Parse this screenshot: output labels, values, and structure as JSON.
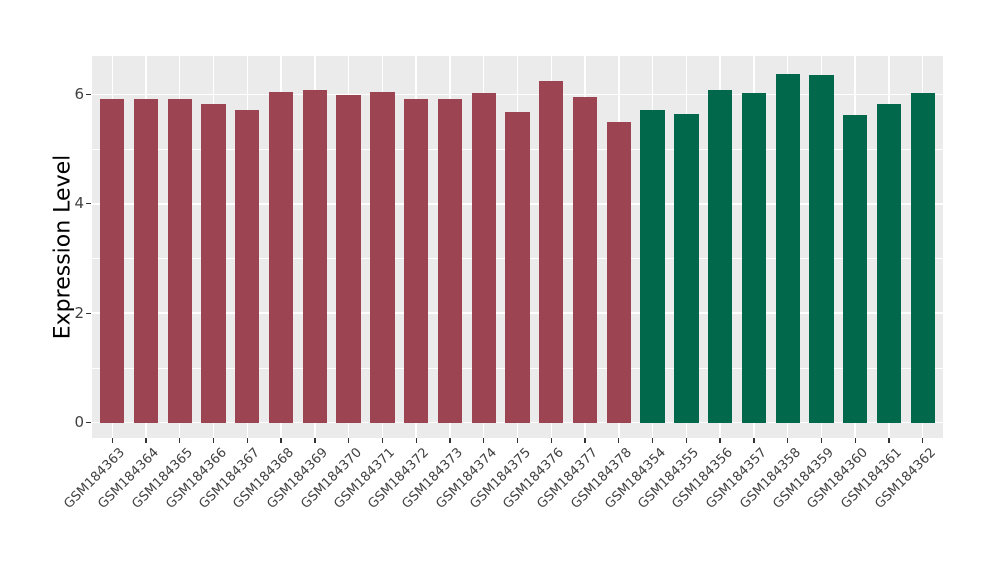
{
  "chart_data": {
    "type": "bar",
    "title": "",
    "xlabel": "",
    "ylabel": "Expression Level",
    "ylim": [
      -0.28,
      6.7
    ],
    "yticks": [
      0,
      2,
      4,
      6
    ],
    "yticks_minor": [
      1,
      3,
      5
    ],
    "grid": "on",
    "legend": "none",
    "x_expand": 0.6,
    "bar_width_frac": 0.72,
    "colors": {
      "group_a": "#9D4452",
      "group_b": "#01684C",
      "panel_bg": "#EBEBEB",
      "gridline": "#FFFFFF",
      "tick_mark": "#333333",
      "tick_label": "#404040",
      "axis_title": "#000000"
    },
    "bars": [
      {
        "label": "GSM184363",
        "value": 5.92,
        "group": "group_a"
      },
      {
        "label": "GSM184364",
        "value": 5.92,
        "group": "group_a"
      },
      {
        "label": "GSM184365",
        "value": 5.91,
        "group": "group_a"
      },
      {
        "label": "GSM184366",
        "value": 5.83,
        "group": "group_a"
      },
      {
        "label": "GSM184367",
        "value": 5.71,
        "group": "group_a"
      },
      {
        "label": "GSM184368",
        "value": 6.05,
        "group": "group_a"
      },
      {
        "label": "GSM184369",
        "value": 6.08,
        "group": "group_a"
      },
      {
        "label": "GSM184370",
        "value": 5.98,
        "group": "group_a"
      },
      {
        "label": "GSM184371",
        "value": 6.04,
        "group": "group_a"
      },
      {
        "label": "GSM184372",
        "value": 5.92,
        "group": "group_a"
      },
      {
        "label": "GSM184373",
        "value": 5.92,
        "group": "group_a"
      },
      {
        "label": "GSM184374",
        "value": 6.02,
        "group": "group_a"
      },
      {
        "label": "GSM184375",
        "value": 5.68,
        "group": "group_a"
      },
      {
        "label": "GSM184376",
        "value": 6.24,
        "group": "group_a"
      },
      {
        "label": "GSM184377",
        "value": 5.95,
        "group": "group_a"
      },
      {
        "label": "GSM184378",
        "value": 5.5,
        "group": "group_a"
      },
      {
        "label": "GSM184354",
        "value": 5.72,
        "group": "group_b"
      },
      {
        "label": "GSM184355",
        "value": 5.64,
        "group": "group_b"
      },
      {
        "label": "GSM184356",
        "value": 6.07,
        "group": "group_b"
      },
      {
        "label": "GSM184357",
        "value": 6.02,
        "group": "group_b"
      },
      {
        "label": "GSM184358",
        "value": 6.38,
        "group": "group_b"
      },
      {
        "label": "GSM184359",
        "value": 6.36,
        "group": "group_b"
      },
      {
        "label": "GSM184360",
        "value": 5.62,
        "group": "group_b"
      },
      {
        "label": "GSM184361",
        "value": 5.83,
        "group": "group_b"
      },
      {
        "label": "GSM184362",
        "value": 6.03,
        "group": "group_b"
      }
    ]
  }
}
